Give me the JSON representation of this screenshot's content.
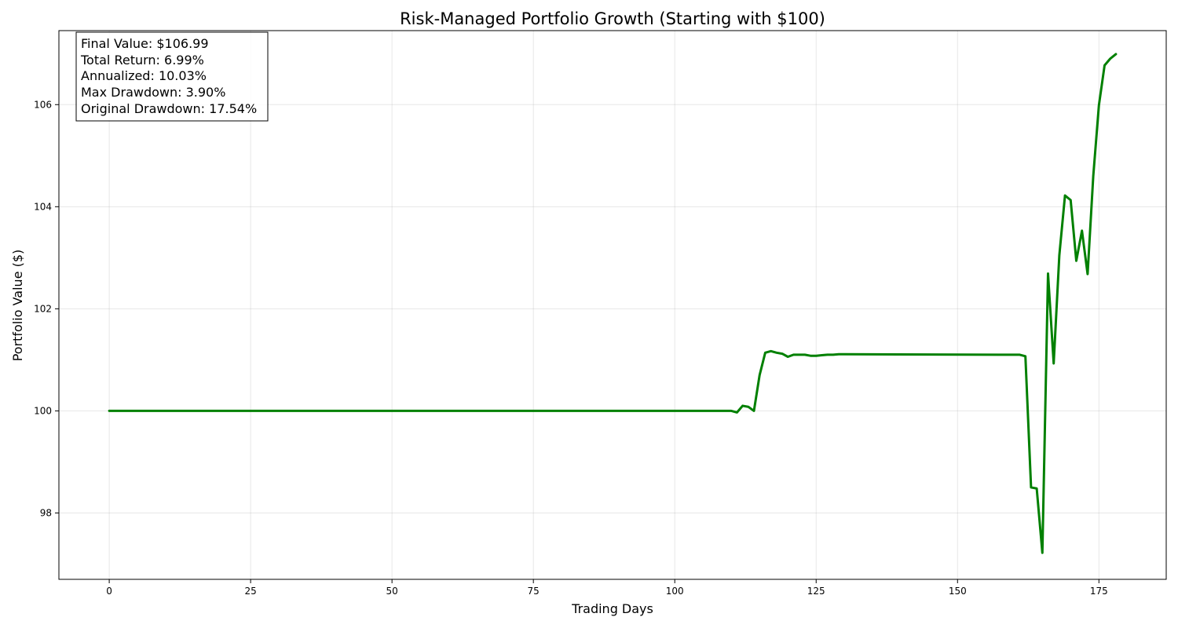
{
  "chart_data": {
    "type": "line",
    "title": "Risk-Managed Portfolio Growth (Starting with $100)",
    "xlabel": "Trading Days",
    "ylabel": "Portfolio Value ($)",
    "xlim": [
      -8.9,
      186.9
    ],
    "ylim": [
      96.7,
      107.45
    ],
    "xticks": [
      0,
      25,
      50,
      75,
      100,
      125,
      150,
      175
    ],
    "yticks": [
      98,
      100,
      102,
      104,
      106
    ],
    "grid": true,
    "series_color": "#008000",
    "stats_box": {
      "placement": "top-left",
      "lines": [
        "Final Value: $106.99",
        "Total Return: 6.99%",
        "Annualized: 10.03%",
        "Max Drawdown: 3.90%",
        "Original Drawdown: 17.54%"
      ]
    },
    "series": [
      {
        "x": [
          0,
          110,
          111,
          112,
          113,
          114,
          115,
          116,
          117,
          118,
          119,
          120,
          121,
          122,
          123,
          124,
          125,
          126,
          127,
          128,
          129,
          130,
          161,
          162,
          163,
          164,
          165,
          166,
          167,
          168,
          169,
          170,
          171,
          172,
          173,
          174,
          175,
          176,
          177,
          178
        ],
        "values": [
          100.0,
          100.0,
          99.97,
          100.1,
          100.08,
          100.0,
          100.7,
          101.14,
          101.17,
          101.14,
          101.12,
          101.06,
          101.1,
          101.1,
          101.1,
          101.08,
          101.08,
          101.09,
          101.1,
          101.1,
          101.11,
          101.11,
          101.1,
          101.07,
          98.5,
          98.48,
          97.22,
          102.69,
          100.93,
          103.05,
          104.22,
          104.13,
          102.94,
          103.53,
          102.68,
          104.6,
          105.99,
          106.77,
          106.9,
          106.99
        ]
      }
    ]
  }
}
